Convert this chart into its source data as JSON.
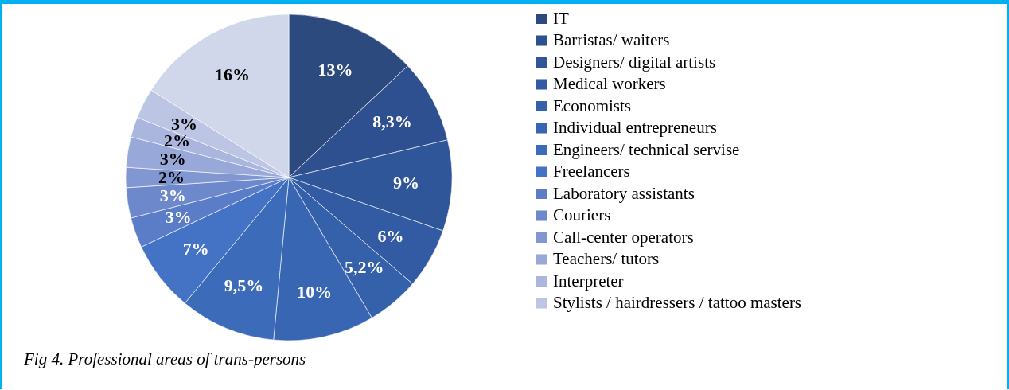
{
  "chart_data": {
    "type": "pie",
    "title": "Fig 4.  Professional areas of trans-persons",
    "categories": [
      "IT",
      "Barristas/ waiters",
      "Designers/ digital artists",
      "Medical workers",
      "Economists",
      "Individual entrepreneurs",
      "Engineers/ technical servise",
      "Freelancers",
      "Laboratory assistants",
      "Couriers",
      "Call-center operators",
      "Teachers/ tutors",
      "Interpreter",
      "Stylists / hairdressers / tattoo masters",
      null
    ],
    "values": [
      13,
      8.3,
      9,
      6,
      5.2,
      10,
      9.5,
      7,
      3,
      3,
      2,
      3,
      2,
      3,
      16
    ],
    "value_labels": [
      "13%",
      "8,3%",
      "9%",
      "6%",
      "5,2%",
      "10%",
      "9,5%",
      "7%",
      "3%",
      "3%",
      "2%",
      "3%",
      "2%",
      "3%",
      "16%"
    ],
    "colors": [
      "#2c4a7e",
      "#2e5090",
      "#30569a",
      "#325ba3",
      "#3560aa",
      "#3866b2",
      "#3c6bb9",
      "#4472c4",
      "#5b7dc8",
      "#6d89cc",
      "#8097d2",
      "#98a8d8",
      "#aab6dd",
      "#bcc5e3",
      "#d0d7eb"
    ],
    "legend": "right"
  }
}
